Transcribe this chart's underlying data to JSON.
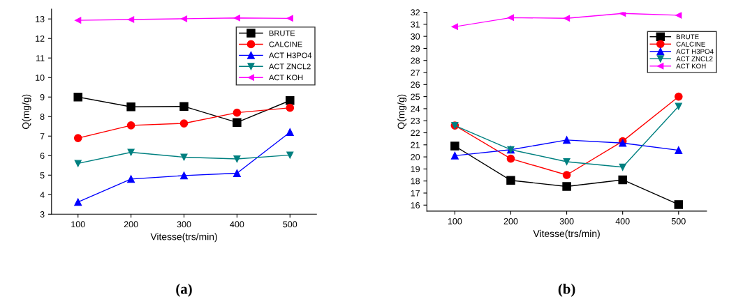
{
  "chart_data": [
    {
      "type": "line",
      "xlabel": "Vitesse(trs/min)",
      "ylabel": "Q(mg/g)",
      "x": [
        100,
        200,
        300,
        400,
        500
      ],
      "xlim": [
        50,
        550
      ],
      "ylim": [
        3,
        13.5
      ],
      "xticks": [
        100,
        200,
        300,
        400,
        500
      ],
      "yticks": [
        3,
        4,
        5,
        6,
        7,
        8,
        9,
        10,
        11,
        12,
        13
      ],
      "legend": "top right",
      "annotations": [
        "(a)"
      ],
      "series": [
        {
          "name": "BRUTE",
          "color": "#000000",
          "marker": "square",
          "values": [
            9.0,
            8.5,
            8.52,
            7.7,
            8.82
          ]
        },
        {
          "name": "CALCINE",
          "color": "#ff0000",
          "marker": "circle",
          "values": [
            6.9,
            7.55,
            7.65,
            8.2,
            8.45
          ]
        },
        {
          "name": "ACT H3PO4",
          "color": "#0000ff",
          "marker": "triangle",
          "values": [
            3.62,
            4.8,
            4.98,
            5.1,
            7.2
          ]
        },
        {
          "name": "ACT ZNCL2",
          "color": "#008080",
          "marker": "triangle_down",
          "values": [
            5.6,
            6.17,
            5.92,
            5.83,
            6.03
          ]
        },
        {
          "name": "ACT KOH",
          "color": "#ff00ff",
          "marker": "triangle_left",
          "values": [
            12.93,
            12.97,
            13.01,
            13.05,
            13.03
          ]
        }
      ]
    },
    {
      "type": "line",
      "xlabel": "Vitesse(trs/min)",
      "ylabel": "Q(mg/g)",
      "x": [
        100,
        200,
        300,
        400,
        500
      ],
      "xlim": [
        50,
        550
      ],
      "ylim": [
        15.5,
        32
      ],
      "xticks": [
        100,
        200,
        300,
        400,
        500
      ],
      "yticks": [
        16,
        17,
        18,
        19,
        20,
        21,
        22,
        23,
        24,
        25,
        26,
        27,
        28,
        29,
        30,
        31,
        32
      ],
      "legend": "top right",
      "annotations": [
        "(b)"
      ],
      "series": [
        {
          "name": "BRUTE",
          "color": "#000000",
          "marker": "square",
          "values": [
            20.9,
            18.05,
            17.55,
            18.1,
            16.05
          ]
        },
        {
          "name": "CALCINE",
          "color": "#ff0000",
          "marker": "circle",
          "values": [
            22.6,
            19.85,
            18.5,
            21.3,
            25.0
          ]
        },
        {
          "name": "ACT H3PO4",
          "color": "#0000ff",
          "marker": "triangle",
          "values": [
            20.1,
            20.6,
            21.4,
            21.15,
            20.55
          ]
        },
        {
          "name": "ACT ZNCL2",
          "color": "#008080",
          "marker": "triangle_down",
          "values": [
            22.6,
            20.6,
            19.6,
            19.15,
            24.2
          ]
        },
        {
          "name": "ACT KOH",
          "color": "#ff00ff",
          "marker": "triangle_left",
          "values": [
            30.8,
            31.55,
            31.5,
            31.9,
            31.75
          ]
        }
      ]
    }
  ]
}
